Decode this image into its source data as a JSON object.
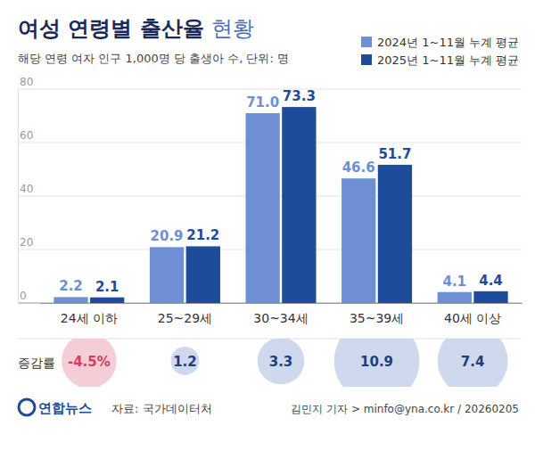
{
  "chart_data": {
    "type": "bar",
    "title": "여성 연령별 출산율 현황",
    "subtitle": "해당 연령 여자 인구 1,000명 당 출생아 수, 단위: 명",
    "categories": [
      "24세 이하",
      "25~29세",
      "30~34세",
      "35~39세",
      "40세 이상"
    ],
    "series": [
      {
        "name": "2024년 1~11월 누계 평균",
        "color": "#6e8fd4",
        "values": [
          2.2,
          20.9,
          71.0,
          46.6,
          4.1
        ],
        "value_labels": [
          "2.2",
          "20.9",
          "71.0",
          "46.6",
          "4.1"
        ]
      },
      {
        "name": "2025년 1~11월 누계 평균",
        "color": "#1e4b9a",
        "values": [
          2.1,
          21.2,
          73.3,
          51.7,
          4.4
        ]
      }
    ],
    "ylim": [
      0,
      80
    ],
    "yticks": [
      0,
      20,
      40,
      60,
      80
    ],
    "grid": true,
    "legend": "upper right",
    "data_labels": true,
    "change_rate": {
      "label": "증감률",
      "values": [
        -4.5,
        1.2,
        3.3,
        10.9,
        7.4
      ],
      "value_labels": [
        "-4.5%",
        "1.2",
        "3.3",
        "10.9",
        "7.4"
      ]
    },
    "logo": "연합뉴스",
    "source": "자료: 국가데이터처",
    "credit": "김민지 기자 > minfo@yna.co.kr / 20260205"
  }
}
